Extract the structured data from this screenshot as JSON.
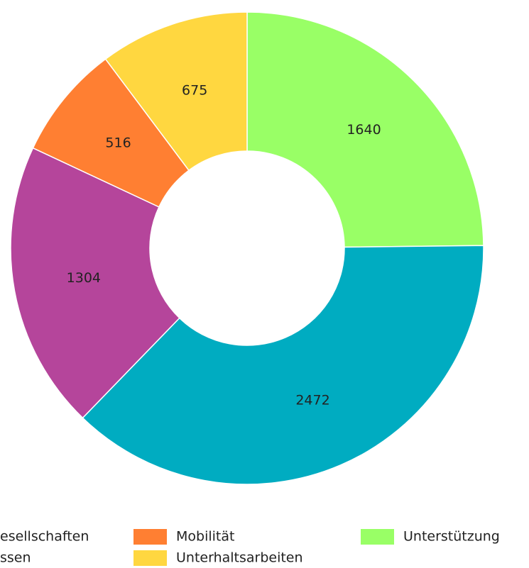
{
  "chart_data": {
    "type": "donut",
    "slices": [
      {
        "name": "Unterstützung",
        "value": 1640,
        "color": "#99ff66"
      },
      {
        "name": "esellschaften",
        "value": 2472,
        "color": "#00acc1"
      },
      {
        "name": "ssen",
        "value": 1304,
        "color": "#b5459b"
      },
      {
        "name": "Mobilität",
        "value": 516,
        "color": "#ff7f32"
      },
      {
        "name": "Unterhaltsarbeiten",
        "value": 675,
        "color": "#ffd740"
      }
    ],
    "legend": [
      1,
      2,
      3,
      4,
      0
    ]
  }
}
